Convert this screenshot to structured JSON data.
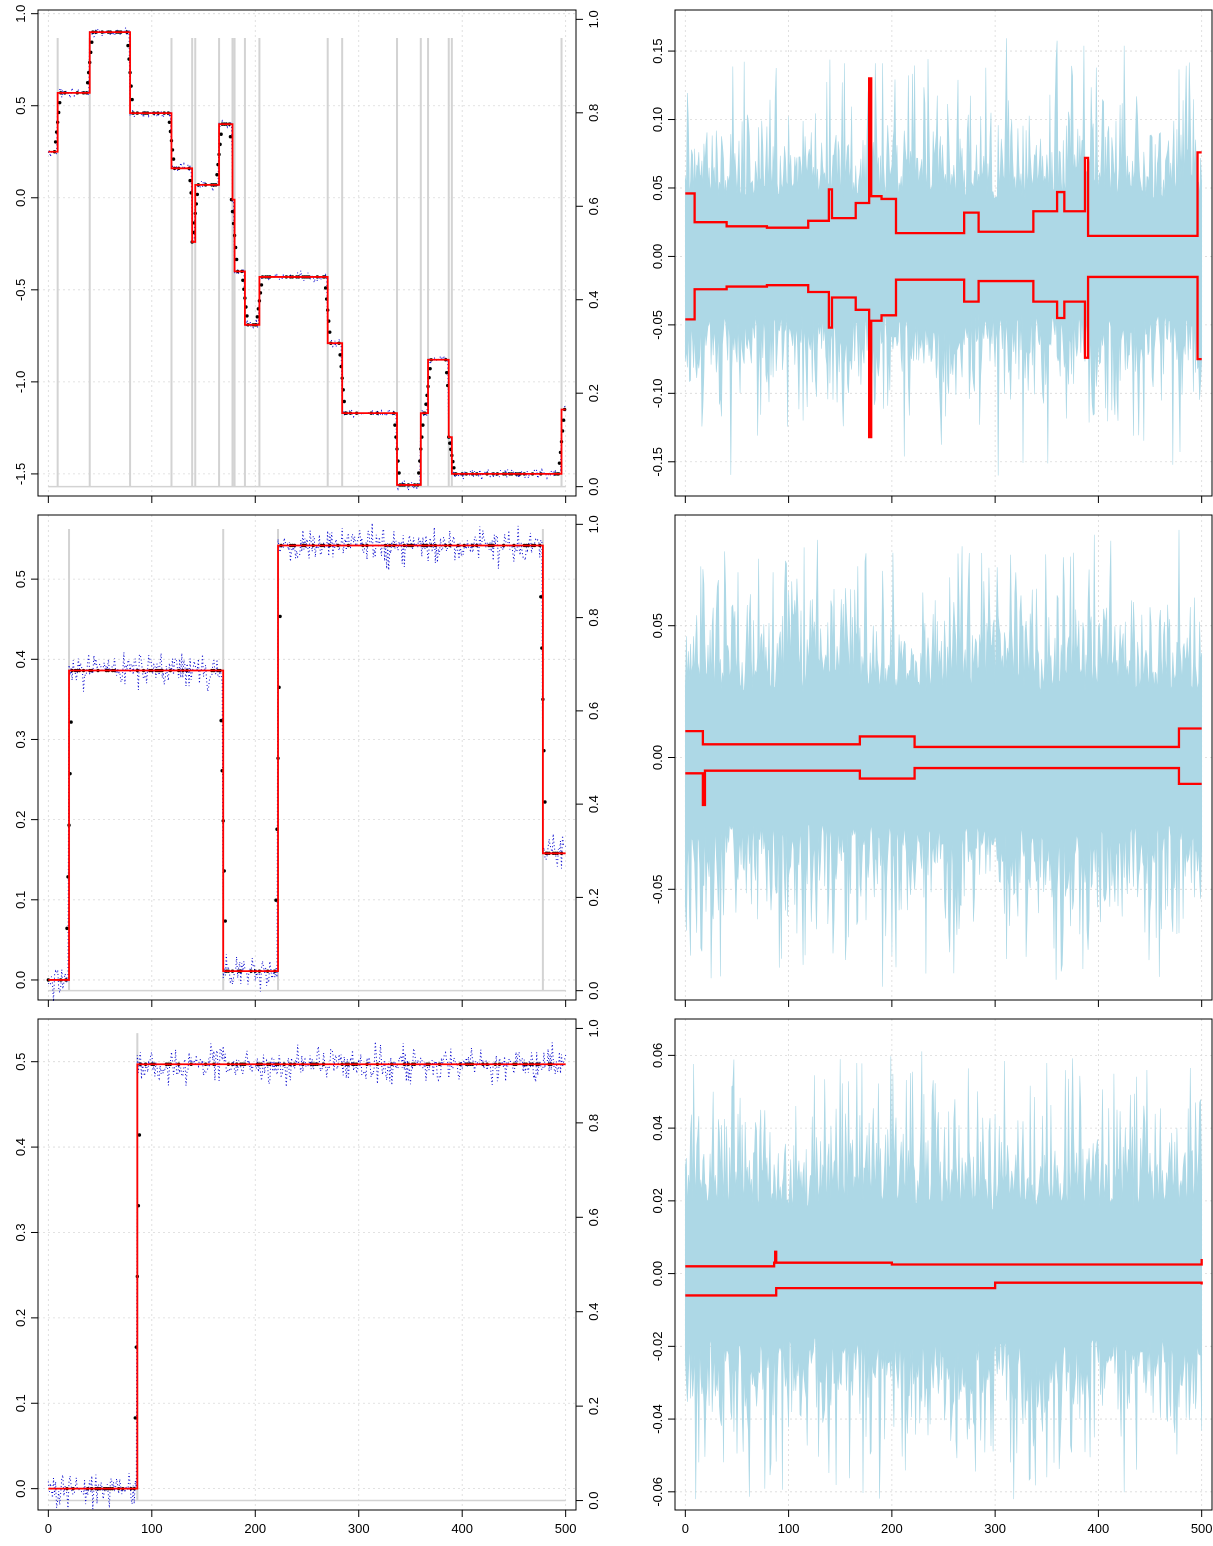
{
  "chart_data": [
    {
      "id": "left-1",
      "type": "line",
      "title": "",
      "xlabel": "",
      "ylabel": "",
      "xlim": [
        -10,
        510
      ],
      "ylim": [
        -1.62,
        1.02
      ],
      "y2lim": [
        -0.02,
        1.02
      ],
      "x_ticks": [
        0,
        100,
        200,
        300,
        400,
        500
      ],
      "show_x_tick_labels": false,
      "y_ticks": [
        -1.5,
        -1.0,
        -0.5,
        0.0,
        0.5,
        1.0
      ],
      "y_tick_labels": [
        "-1.5",
        "-1.0",
        "-0.5",
        "0.0",
        "0.5",
        "1.0"
      ],
      "y2_ticks": [
        0.0,
        0.2,
        0.4,
        0.6,
        0.8,
        1.0
      ],
      "y2_tick_labels": [
        "0.0",
        "0.2",
        "0.4",
        "0.6",
        "0.8",
        "1.0"
      ],
      "grid": true,
      "changepoint_lines": {
        "color": "#d3d3d3",
        "x": [
          9,
          40,
          79,
          119,
          139,
          142,
          165,
          178,
          180,
          190,
          204,
          270,
          284,
          337,
          360,
          367,
          387,
          390,
          496
        ],
        "y2": [
          0,
          0.96
        ]
      },
      "series": [
        {
          "style": "step",
          "color": "#ff0000",
          "steps": [
            [
              0,
              0.25
            ],
            [
              9,
              0.57
            ],
            [
              40,
              0.9
            ],
            [
              79,
              0.46
            ],
            [
              119,
              0.16
            ],
            [
              139,
              -0.24
            ],
            [
              142,
              0.07
            ],
            [
              165,
              0.4
            ],
            [
              178,
              -0.01
            ],
            [
              180,
              -0.4
            ],
            [
              190,
              -0.69
            ],
            [
              204,
              -0.43
            ],
            [
              270,
              -0.79
            ],
            [
              284,
              -1.17
            ],
            [
              337,
              -1.56
            ],
            [
              360,
              -1.17
            ],
            [
              367,
              -0.88
            ],
            [
              387,
              -1.3
            ],
            [
              390,
              -1.5
            ],
            [
              496,
              -1.15
            ],
            [
              500,
              -1.15
            ]
          ]
        },
        {
          "style": "dotted-noisy",
          "color": "#0000cc",
          "noise": 0.012
        },
        {
          "style": "points-at-jumps",
          "color": "#000000"
        }
      ]
    },
    {
      "id": "right-1",
      "type": "area",
      "title": "",
      "xlabel": "",
      "ylabel": "",
      "xlim": [
        -10,
        510
      ],
      "ylim": [
        -0.175,
        0.18
      ],
      "x_ticks": [
        0,
        100,
        200,
        300,
        400,
        500
      ],
      "show_x_tick_labels": false,
      "y_ticks": [
        -0.15,
        -0.1,
        -0.05,
        0.0,
        0.05,
        0.1,
        0.15
      ],
      "y_tick_labels": [
        "-0.15",
        "-0.10",
        "-0.05",
        "0.00",
        "0.05",
        "0.10",
        "0.15"
      ],
      "grid": true,
      "band": {
        "color": "#add8e6",
        "amplitude": 0.075,
        "spike": 0.16
      },
      "upper": [
        [
          0,
          0.046
        ],
        [
          9,
          0.025
        ],
        [
          40,
          0.022
        ],
        [
          79,
          0.021
        ],
        [
          119,
          0.026
        ],
        [
          139,
          0.049
        ],
        [
          142,
          0.028
        ],
        [
          165,
          0.039
        ],
        [
          178,
          0.13
        ],
        [
          180,
          0.044
        ],
        [
          190,
          0.042
        ],
        [
          204,
          0.017
        ],
        [
          270,
          0.032
        ],
        [
          284,
          0.018
        ],
        [
          337,
          0.033
        ],
        [
          360,
          0.047
        ],
        [
          367,
          0.033
        ],
        [
          387,
          0.072
        ],
        [
          390,
          0.015
        ],
        [
          496,
          0.076
        ],
        [
          500,
          0.076
        ]
      ],
      "lower": [
        [
          0,
          -0.046
        ],
        [
          9,
          -0.024
        ],
        [
          40,
          -0.022
        ],
        [
          79,
          -0.021
        ],
        [
          119,
          -0.026
        ],
        [
          139,
          -0.052
        ],
        [
          142,
          -0.03
        ],
        [
          165,
          -0.039
        ],
        [
          178,
          -0.132
        ],
        [
          180,
          -0.047
        ],
        [
          190,
          -0.043
        ],
        [
          204,
          -0.017
        ],
        [
          270,
          -0.033
        ],
        [
          284,
          -0.018
        ],
        [
          337,
          -0.033
        ],
        [
          360,
          -0.045
        ],
        [
          367,
          -0.033
        ],
        [
          387,
          -0.074
        ],
        [
          390,
          -0.015
        ],
        [
          496,
          -0.075
        ],
        [
          500,
          -0.075
        ]
      ],
      "line_color": "#ff0000"
    },
    {
      "id": "left-2",
      "type": "line",
      "title": "",
      "xlabel": "",
      "ylabel": "",
      "xlim": [
        -10,
        510
      ],
      "ylim": [
        -0.025,
        0.58
      ],
      "y2lim": [
        -0.02,
        1.02
      ],
      "x_ticks": [
        0,
        100,
        200,
        300,
        400,
        500
      ],
      "show_x_tick_labels": false,
      "y_ticks": [
        0.0,
        0.1,
        0.2,
        0.3,
        0.4,
        0.5
      ],
      "y_tick_labels": [
        "0.0",
        "0.1",
        "0.2",
        "0.3",
        "0.4",
        "0.5"
      ],
      "y2_ticks": [
        0.0,
        0.2,
        0.4,
        0.6,
        0.8,
        1.0
      ],
      "y2_tick_labels": [
        "0.0",
        "0.2",
        "0.4",
        "0.6",
        "0.8",
        "1.0"
      ],
      "grid": true,
      "changepoint_lines": {
        "color": "#d3d3d3",
        "x": [
          20,
          169,
          222,
          478
        ],
        "y2": [
          0,
          0.99
        ]
      },
      "series": [
        {
          "style": "step",
          "color": "#ff0000",
          "steps": [
            [
              0,
              0.0
            ],
            [
              20,
              0.386
            ],
            [
              169,
              0.011
            ],
            [
              222,
              0.542
            ],
            [
              478,
              0.158
            ],
            [
              500,
              0.158
            ]
          ]
        },
        {
          "style": "dotted-noisy",
          "color": "#0000cc",
          "noise": 0.01
        },
        {
          "style": "points-at-jumps",
          "color": "#000000"
        }
      ]
    },
    {
      "id": "right-2",
      "type": "area",
      "title": "",
      "xlabel": "",
      "ylabel": "",
      "xlim": [
        -10,
        510
      ],
      "ylim": [
        -0.092,
        0.092
      ],
      "x_ticks": [
        0,
        100,
        200,
        300,
        400,
        500
      ],
      "show_x_tick_labels": false,
      "y_ticks": [
        -0.05,
        0.0,
        0.05
      ],
      "y_tick_labels": [
        "-0.05",
        "0.00",
        "0.05"
      ],
      "grid": true,
      "band": {
        "color": "#add8e6",
        "amplitude": 0.045,
        "spike": 0.087
      },
      "upper": [
        [
          0,
          0.01
        ],
        [
          17,
          0.005
        ],
        [
          169,
          0.008
        ],
        [
          222,
          0.004
        ],
        [
          478,
          0.011
        ],
        [
          500,
          0.011
        ]
      ],
      "lower": [
        [
          0,
          -0.006
        ],
        [
          17,
          -0.018
        ],
        [
          19,
          -0.005
        ],
        [
          169,
          -0.008
        ],
        [
          222,
          -0.004
        ],
        [
          478,
          -0.01
        ],
        [
          500,
          -0.01
        ]
      ],
      "line_color": "#ff0000"
    },
    {
      "id": "left-3",
      "type": "line",
      "title": "",
      "xlabel": "",
      "ylabel": "",
      "xlim": [
        -10,
        510
      ],
      "ylim": [
        -0.025,
        0.55
      ],
      "y2lim": [
        -0.02,
        1.02
      ],
      "x_ticks": [
        0,
        100,
        200,
        300,
        400,
        500
      ],
      "x_tick_labels": [
        "0",
        "100",
        "200",
        "300",
        "400",
        "500"
      ],
      "show_x_tick_labels": true,
      "y_ticks": [
        0.0,
        0.1,
        0.2,
        0.3,
        0.4,
        0.5
      ],
      "y_tick_labels": [
        "0.0",
        "0.1",
        "0.2",
        "0.3",
        "0.4",
        "0.5"
      ],
      "y2_ticks": [
        0.0,
        0.2,
        0.4,
        0.6,
        0.8,
        1.0
      ],
      "y2_tick_labels": [
        "0.0",
        "0.2",
        "0.4",
        "0.6",
        "0.8",
        "1.0"
      ],
      "grid": true,
      "changepoint_lines": {
        "color": "#d3d3d3",
        "x": [
          86
        ],
        "y2": [
          0,
          0.99
        ]
      },
      "series": [
        {
          "style": "step",
          "color": "#ff0000",
          "steps": [
            [
              0,
              0.0
            ],
            [
              86,
              0.497
            ],
            [
              500,
              0.497
            ]
          ]
        },
        {
          "style": "dotted-noisy",
          "color": "#0000cc",
          "noise": 0.01
        },
        {
          "style": "points-at-jumps",
          "color": "#000000"
        }
      ]
    },
    {
      "id": "right-3",
      "type": "area",
      "title": "",
      "xlabel": "",
      "ylabel": "",
      "xlim": [
        -10,
        510
      ],
      "ylim": [
        -0.065,
        0.07
      ],
      "x_ticks": [
        0,
        100,
        200,
        300,
        400,
        500
      ],
      "x_tick_labels": [
        "0",
        "100",
        "200",
        "300",
        "400",
        "500"
      ],
      "show_x_tick_labels": true,
      "y_ticks": [
        -0.06,
        -0.04,
        -0.02,
        0.0,
        0.02,
        0.04,
        0.06
      ],
      "y_tick_labels": [
        "-0.06",
        "-0.04",
        "-0.02",
        "0.00",
        "0.02",
        "0.04",
        "0.06"
      ],
      "grid": true,
      "band": {
        "color": "#add8e6",
        "amplitude": 0.032,
        "spike": 0.062
      },
      "upper": [
        [
          0,
          0.002
        ],
        [
          86,
          0.003
        ],
        [
          87,
          0.006
        ],
        [
          88,
          0.003
        ],
        [
          200,
          0.0025
        ],
        [
          500,
          0.004
        ]
      ],
      "lower": [
        [
          0,
          -0.006
        ],
        [
          86,
          -0.006
        ],
        [
          88,
          -0.004
        ],
        [
          300,
          -0.0025
        ],
        [
          500,
          -0.003
        ]
      ],
      "line_color": "#ff0000"
    }
  ]
}
